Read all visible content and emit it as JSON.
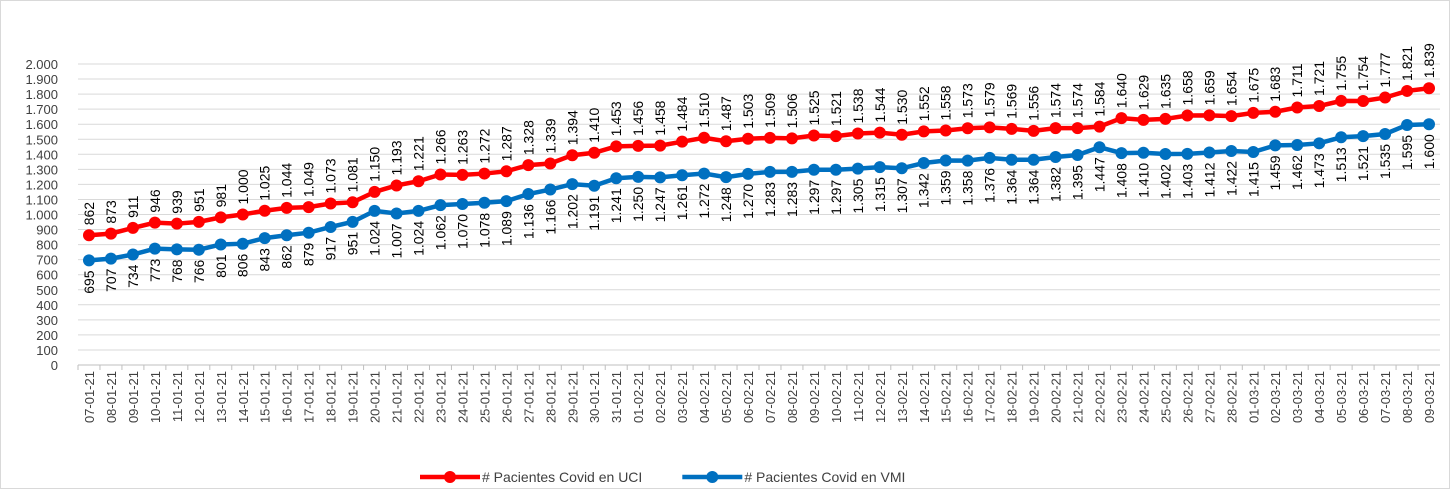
{
  "chart_data": {
    "type": "line",
    "categories": [
      "07-01-21",
      "08-01-21",
      "09-01-21",
      "10-01-21",
      "11-01-21",
      "12-01-21",
      "13-01-21",
      "14-01-21",
      "15-01-21",
      "16-01-21",
      "17-01-21",
      "18-01-21",
      "19-01-21",
      "20-01-21",
      "21-01-21",
      "22-01-21",
      "23-01-21",
      "24-01-21",
      "25-01-21",
      "26-01-21",
      "27-01-21",
      "28-01-21",
      "29-01-21",
      "30-01-21",
      "31-01-21",
      "01-02-21",
      "02-02-21",
      "03-02-21",
      "04-02-21",
      "05-02-21",
      "06-02-21",
      "07-02-21",
      "08-02-21",
      "09-02-21",
      "10-02-21",
      "11-02-21",
      "12-02-21",
      "13-02-21",
      "14-02-21",
      "15-02-21",
      "16-02-21",
      "17-02-21",
      "18-02-21",
      "19-02-21",
      "20-02-21",
      "21-02-21",
      "22-02-21",
      "23-02-21",
      "24-02-21",
      "25-02-21",
      "26-02-21",
      "27-02-21",
      "28-02-21",
      "01-03-21",
      "02-03-21",
      "03-03-21",
      "04-03-21",
      "05-03-21",
      "06-03-21",
      "07-03-21",
      "08-03-21",
      "09-03-21"
    ],
    "series": [
      {
        "name": "# Pacientes Covid en UCI",
        "color": "#ff0000",
        "label_position": "above",
        "values": [
          862,
          873,
          911,
          946,
          939,
          951,
          981,
          1000,
          1025,
          1044,
          1049,
          1073,
          1081,
          1150,
          1193,
          1221,
          1266,
          1263,
          1272,
          1287,
          1328,
          1339,
          1394,
          1410,
          1453,
          1456,
          1458,
          1484,
          1510,
          1487,
          1503,
          1509,
          1506,
          1525,
          1521,
          1538,
          1544,
          1530,
          1552,
          1558,
          1573,
          1579,
          1569,
          1556,
          1574,
          1574,
          1584,
          1640,
          1629,
          1635,
          1658,
          1659,
          1654,
          1675,
          1683,
          1711,
          1721,
          1755,
          1754,
          1777,
          1821,
          1839
        ],
        "value_labels": [
          "862",
          "873",
          "911",
          "946",
          "939",
          "951",
          "981",
          "1.000",
          "1.025",
          "1.044",
          "1.049",
          "1.073",
          "1.081",
          "1.150",
          "1.193",
          "1.221",
          "1.266",
          "1.263",
          "1.272",
          "1.287",
          "1.328",
          "1.339",
          "1.394",
          "1.410",
          "1.453",
          "1.456",
          "1.458",
          "1.484",
          "1.510",
          "1.487",
          "1.503",
          "1.509",
          "1.506",
          "1.525",
          "1.521",
          "1.538",
          "1.544",
          "1.530",
          "1.552",
          "1.558",
          "1.573",
          "1.579",
          "1.569",
          "1.556",
          "1.574",
          "1.574",
          "1.584",
          "1.640",
          "1.629",
          "1.635",
          "1.658",
          "1.659",
          "1.654",
          "1.675",
          "1.683",
          "1.711",
          "1.721",
          "1.755",
          "1.754",
          "1.777",
          "1.821",
          "1.839"
        ]
      },
      {
        "name": "# Pacientes Covid en VMI",
        "color": "#0070c0",
        "label_position": "below",
        "values": [
          695,
          707,
          734,
          773,
          768,
          766,
          801,
          806,
          843,
          862,
          879,
          917,
          951,
          1024,
          1007,
          1024,
          1062,
          1070,
          1078,
          1089,
          1136,
          1166,
          1202,
          1191,
          1241,
          1250,
          1247,
          1261,
          1272,
          1248,
          1270,
          1283,
          1283,
          1297,
          1297,
          1305,
          1315,
          1307,
          1342,
          1359,
          1358,
          1376,
          1364,
          1364,
          1382,
          1395,
          1447,
          1408,
          1410,
          1402,
          1403,
          1412,
          1422,
          1415,
          1459,
          1462,
          1473,
          1513,
          1521,
          1535,
          1595,
          1600
        ],
        "value_labels": [
          "695",
          "707",
          "734",
          "773",
          "768",
          "766",
          "801",
          "806",
          "843",
          "862",
          "879",
          "917",
          "951",
          "1.024",
          "1.007",
          "1.024",
          "1.062",
          "1.070",
          "1.078",
          "1.089",
          "1.136",
          "1.166",
          "1.202",
          "1.191",
          "1.241",
          "1.250",
          "1.247",
          "1.261",
          "1.272",
          "1.248",
          "1.270",
          "1.283",
          "1.283",
          "1.297",
          "1.297",
          "1.305",
          "1.315",
          "1.307",
          "1.342",
          "1.359",
          "1.358",
          "1.376",
          "1.364",
          "1.364",
          "1.382",
          "1.395",
          "1.447",
          "1.408",
          "1.410",
          "1.402",
          "1.403",
          "1.412",
          "1.422",
          "1.415",
          "1.459",
          "1.462",
          "1.473",
          "1.513",
          "1.521",
          "1.535",
          "1.595",
          "1.600"
        ]
      }
    ],
    "ylim": [
      0,
      2000
    ],
    "yticks": [
      0,
      100,
      200,
      300,
      400,
      500,
      600,
      700,
      800,
      900,
      {
        "value": 1000,
        "label": "1.000"
      },
      {
        "value": 1100,
        "label": "1.100"
      },
      {
        "value": 1200,
        "label": "1.200"
      },
      {
        "value": 1300,
        "label": "1.300"
      },
      {
        "value": 1400,
        "label": "1.400"
      },
      {
        "value": 1500,
        "label": "1.500"
      },
      {
        "value": 1600,
        "label": "1.600"
      },
      {
        "value": 1700,
        "label": "1.700"
      },
      {
        "value": 1800,
        "label": "1.800"
      },
      {
        "value": 1900,
        "label": "1.900"
      },
      {
        "value": 2000,
        "label": "2.000"
      }
    ],
    "grid": true,
    "legend": "bottom"
  }
}
